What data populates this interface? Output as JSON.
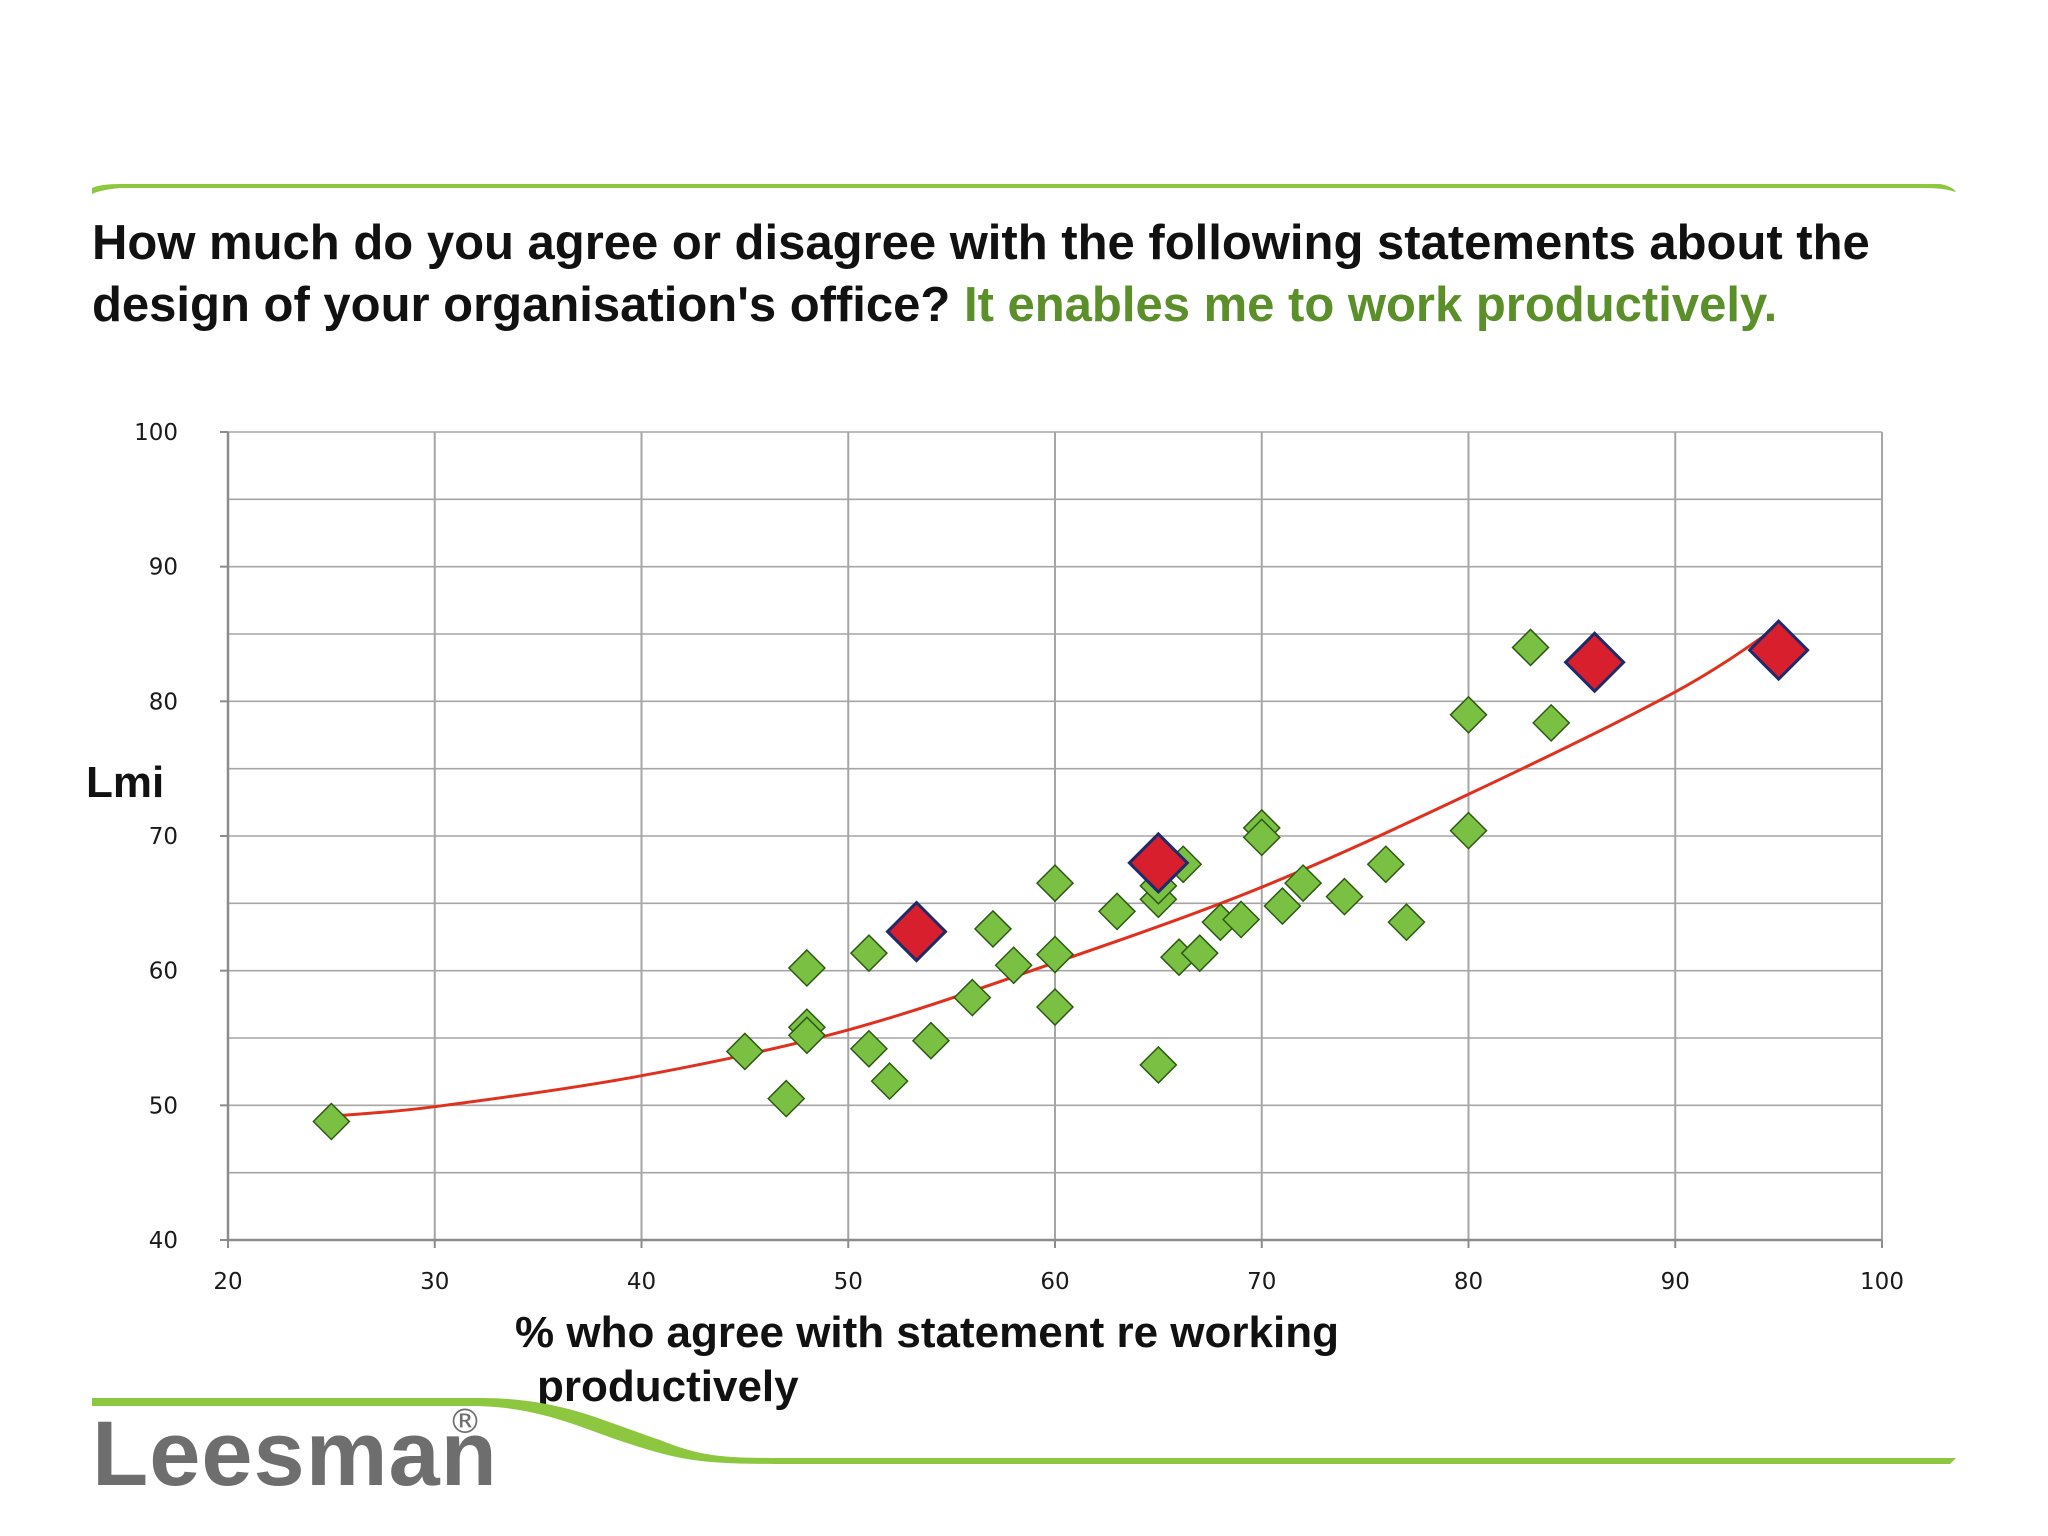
{
  "title": {
    "main": "How much do you agree or disagree with the following statements about the design of your organisation's office? ",
    "highlight": "It enables me to work productively."
  },
  "colors": {
    "accent_green": "#5a8f29",
    "swoosh_green": "#8dc63f",
    "point_green": "#7ac143",
    "point_red": "#d71f2d",
    "trend_red": "#e0301e",
    "grid": "#a6a6a6"
  },
  "chart_data": {
    "type": "scatter",
    "title": "",
    "xlabel": "% who agree with statement re working productively",
    "ylabel": "Lmi",
    "xlim": [
      20,
      100
    ],
    "ylim": [
      40,
      100
    ],
    "x_ticks": [
      "20",
      "30",
      "40",
      "50",
      "60",
      "70",
      "80",
      "90",
      "100"
    ],
    "y_ticks": [
      "40",
      "50",
      "60",
      "70",
      "80",
      "90",
      "100"
    ],
    "grid": true,
    "series": [
      {
        "marker": "diamond",
        "color": "#7ac143",
        "points": [
          [
            25,
            48.8
          ],
          [
            45,
            54
          ],
          [
            47,
            50.5
          ],
          [
            48,
            60.2
          ],
          [
            48,
            55.8
          ],
          [
            48,
            55.2
          ],
          [
            51,
            61.3
          ],
          [
            51,
            54.2
          ],
          [
            52,
            51.8
          ],
          [
            54,
            54.8
          ],
          [
            56,
            58
          ],
          [
            57,
            63.1
          ],
          [
            58,
            60.4
          ],
          [
            60,
            66.5
          ],
          [
            60,
            61.2
          ],
          [
            60,
            57.3
          ],
          [
            63,
            64.4
          ],
          [
            65,
            65.3
          ],
          [
            65,
            66.3
          ],
          [
            65,
            53
          ],
          [
            66,
            61
          ],
          [
            66.2,
            67.9
          ],
          [
            67,
            61.3
          ],
          [
            68,
            63.6
          ],
          [
            69,
            63.8
          ],
          [
            70,
            70.6
          ],
          [
            70,
            69.9
          ],
          [
            71,
            64.8
          ],
          [
            72,
            66.5
          ],
          [
            74,
            65.5
          ],
          [
            76,
            67.9
          ],
          [
            77,
            63.6
          ],
          [
            80,
            79
          ],
          [
            80,
            70.4
          ],
          [
            83,
            84
          ],
          [
            84,
            78.4
          ]
        ]
      },
      {
        "marker": "diamond-large",
        "color": "#d71f2d",
        "points": [
          [
            53.3,
            62.9
          ],
          [
            65,
            68
          ],
          [
            86.1,
            82.9
          ],
          [
            95,
            83.8
          ]
        ]
      }
    ],
    "trendline": {
      "type": "polynomial",
      "color": "#e0301e",
      "points": [
        [
          25,
          49.2
        ],
        [
          30,
          49.9
        ],
        [
          40,
          52.2
        ],
        [
          50,
          55.6
        ],
        [
          60,
          60.6
        ],
        [
          70,
          66.2
        ],
        [
          80,
          73.1
        ],
        [
          90,
          80.7
        ],
        [
          95,
          85.6
        ]
      ]
    }
  },
  "logo": {
    "text": "Leesman",
    "mark": "®"
  }
}
